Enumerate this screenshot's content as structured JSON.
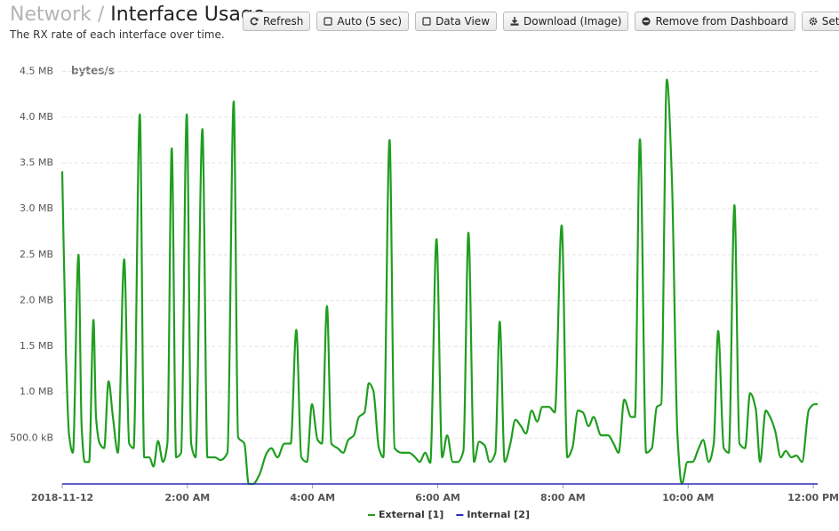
{
  "header": {
    "breadcrumb": "Network",
    "separator": "/",
    "title": "Interface Usage",
    "subtitle": "The RX rate of each interface over time."
  },
  "toolbar": {
    "buttons": [
      "Refresh",
      "Auto (5 sec)",
      "Data View",
      "Download (Image)",
      "Remove from Dashboard",
      "Settings"
    ]
  },
  "chart_data": {
    "type": "line",
    "y_unit_label": "bytes/s",
    "grid": true,
    "legend": "bottom",
    "xlim": [
      0,
      12.07
    ],
    "xticks": [
      {
        "value": 0,
        "label": "2018-11-12"
      },
      {
        "value": 2,
        "label": "2:00 AM"
      },
      {
        "value": 4,
        "label": "4:00 AM"
      },
      {
        "value": 6,
        "label": "6:00 AM"
      },
      {
        "value": 8,
        "label": "8:00 AM"
      },
      {
        "value": 10,
        "label": "10:00 AM"
      },
      {
        "value": 12,
        "label": "12:00 PM"
      }
    ],
    "ylim": [
      0,
      4600000
    ],
    "yticks": [
      {
        "value": 500000,
        "label": "500.0 kB"
      },
      {
        "value": 1000000,
        "label": "1.0 MB"
      },
      {
        "value": 1500000,
        "label": "1.5 MB"
      },
      {
        "value": 2000000,
        "label": "2.0 MB"
      },
      {
        "value": 2500000,
        "label": "2.5 MB"
      },
      {
        "value": 3000000,
        "label": "3.0 MB"
      },
      {
        "value": 3500000,
        "label": "3.5 MB"
      },
      {
        "value": 4000000,
        "label": "4.0 MB"
      },
      {
        "value": 4500000,
        "label": "4.5 MB"
      }
    ],
    "series": [
      {
        "name": "External [1]",
        "color": "#1f9e1f",
        "x": [
          0,
          0.06,
          0.11,
          0.17,
          0.26,
          0.31,
          0.36,
          0.43,
          0.5,
          0.54,
          0.6,
          0.67,
          0.74,
          0.81,
          0.89,
          0.99,
          1.07,
          1.14,
          1.24,
          1.31,
          1.39,
          1.46,
          1.53,
          1.61,
          1.68,
          1.75,
          1.82,
          1.9,
          1.99,
          2.06,
          2.13,
          2.24,
          2.32,
          2.44,
          2.53,
          2.64,
          2.74,
          2.81,
          2.91,
          2.98,
          3.05,
          3.15,
          3.27,
          3.34,
          3.44,
          3.55,
          3.65,
          3.74,
          3.82,
          3.91,
          3.99,
          4.08,
          4.15,
          4.23,
          4.3,
          4.4,
          4.49,
          4.57,
          4.66,
          4.74,
          4.83,
          4.9,
          4.97,
          5.06,
          5.13,
          5.23,
          5.31,
          5.43,
          5.54,
          5.64,
          5.71,
          5.8,
          5.88,
          5.98,
          6.07,
          6.15,
          6.24,
          6.32,
          6.41,
          6.49,
          6.58,
          6.66,
          6.75,
          6.83,
          6.92,
          6.99,
          7.07,
          7.16,
          7.24,
          7.33,
          7.41,
          7.5,
          7.59,
          7.67,
          7.78,
          7.87,
          7.98,
          8.07,
          8.15,
          8.24,
          8.32,
          8.41,
          8.49,
          8.61,
          8.72,
          8.81,
          8.89,
          8.98,
          9.09,
          9.15,
          9.23,
          9.33,
          9.42,
          9.5,
          9.57,
          9.66,
          9.74,
          9.83,
          9.9,
          9.99,
          10.07,
          10.17,
          10.24,
          10.33,
          10.41,
          10.48,
          10.57,
          10.65,
          10.74,
          10.82,
          10.91,
          10.99,
          11.08,
          11.15,
          11.24,
          11.31,
          11.39,
          11.48,
          11.56,
          11.65,
          11.73,
          11.82,
          11.93,
          12.02,
          12.07
        ],
        "values": [
          3410000,
          1410000,
          530000,
          340000,
          2500000,
          630000,
          240000,
          240000,
          1790000,
          730000,
          440000,
          390000,
          1120000,
          730000,
          340000,
          2450000,
          440000,
          390000,
          4030000,
          290000,
          290000,
          190000,
          470000,
          240000,
          440000,
          3660000,
          290000,
          340000,
          4030000,
          440000,
          290000,
          3870000,
          290000,
          290000,
          260000,
          340000,
          4170000,
          510000,
          440000,
          0,
          0,
          100000,
          340000,
          390000,
          290000,
          440000,
          440000,
          1680000,
          290000,
          240000,
          870000,
          480000,
          440000,
          1940000,
          440000,
          390000,
          340000,
          480000,
          530000,
          730000,
          780000,
          1100000,
          1020000,
          390000,
          290000,
          3750000,
          390000,
          340000,
          340000,
          290000,
          240000,
          340000,
          230000,
          2670000,
          290000,
          530000,
          240000,
          240000,
          360000,
          2740000,
          240000,
          460000,
          420000,
          240000,
          340000,
          1770000,
          240000,
          440000,
          700000,
          630000,
          550000,
          800000,
          680000,
          840000,
          840000,
          780000,
          2820000,
          290000,
          390000,
          800000,
          780000,
          630000,
          730000,
          530000,
          530000,
          440000,
          340000,
          920000,
          730000,
          730000,
          3760000,
          340000,
          390000,
          840000,
          870000,
          4410000,
          3350000,
          530000,
          0,
          240000,
          240000,
          390000,
          480000,
          240000,
          440000,
          1670000,
          390000,
          340000,
          3040000,
          440000,
          390000,
          990000,
          820000,
          240000,
          800000,
          730000,
          580000,
          290000,
          360000,
          290000,
          310000,
          240000,
          810000,
          870000,
          870000
        ]
      },
      {
        "name": "Internal [2]",
        "color": "#2a2ab8",
        "x": [
          0,
          12.07
        ],
        "values": [
          0,
          0
        ]
      }
    ]
  }
}
